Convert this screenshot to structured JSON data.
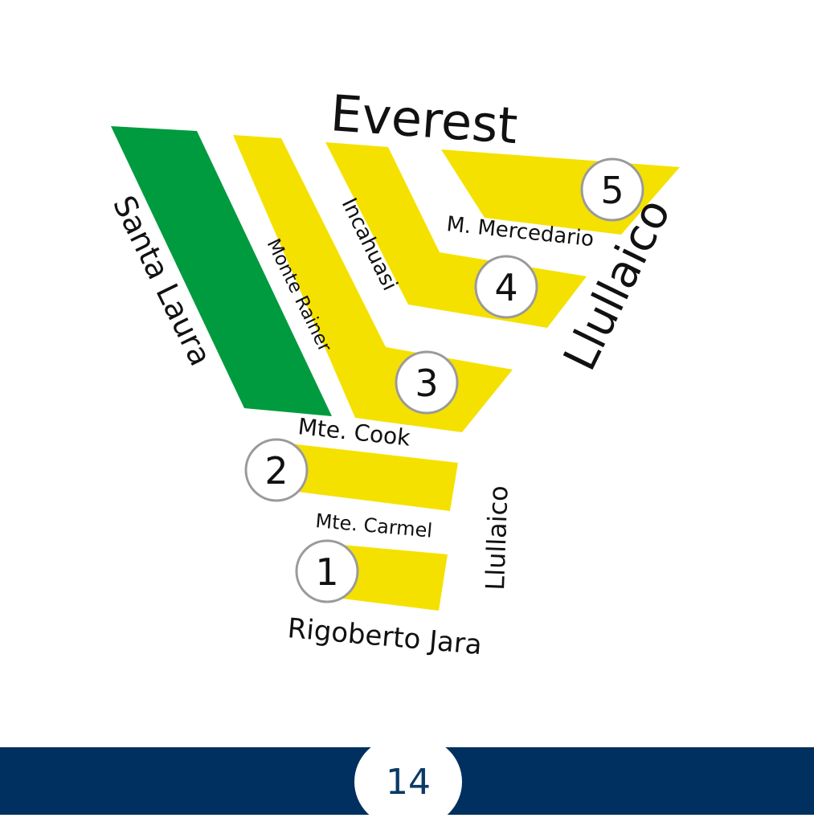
{
  "colors": {
    "green_block": "#009b3e",
    "yellow_block": "#f5e100",
    "footer_bar": "#00305f",
    "page_number": "#0b3a66"
  },
  "streets": {
    "everest": "Everest",
    "santa_laura": "Santa Laura",
    "monte_rainer": "Monte Rainer",
    "incahuasi": "Incahuasi",
    "m_mercedario": "M. Mercedario",
    "llullaico_big": "Llullaico",
    "mte_cook": "Mte. Cook",
    "mte_carmel": "Mte. Carmel",
    "llullaico_small": "Llullaico",
    "rigoberto_jara": "Rigoberto Jara"
  },
  "markers": [
    "1",
    "2",
    "3",
    "4",
    "5"
  ],
  "footer": {
    "page_number": "14"
  }
}
